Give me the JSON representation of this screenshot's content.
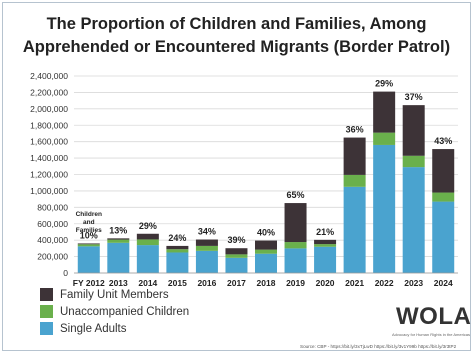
{
  "title_line1": "The Proportion of Children and Families, Among",
  "title_line2": "Apprehended or Encountered Migrants (Border Patrol)",
  "annotation": "Children and Families",
  "brand": "WOLA",
  "brand_tagline": "Advocacy for Human Rights in the Americas",
  "source": "Source: CBP - https://bit.ly/3xTjLwD https://bit.ly/3v1Y99b https://bit.ly/3r3tP2",
  "colors": {
    "family": "#3d3337",
    "unaccompanied": "#6ab04c",
    "single": "#4aa3cf"
  },
  "legend": [
    {
      "label": "Family Unit Members",
      "color": "#3d3337"
    },
    {
      "label": "Unaccompanied Children",
      "color": "#6ab04c"
    },
    {
      "label": "Single Adults",
      "color": "#4aa3cf"
    }
  ],
  "chart_data": {
    "type": "bar",
    "stacked": true,
    "categories": [
      "FY 2012",
      "2013",
      "2014",
      "2015",
      "2016",
      "2017",
      "2018",
      "2019",
      "2020",
      "2021",
      "2022",
      "2023",
      "2024"
    ],
    "series": [
      {
        "name": "Single Adults",
        "values": [
          325000,
          368000,
          340000,
          250000,
          270000,
          185000,
          235000,
          300000,
          320000,
          1050000,
          1560000,
          1290000,
          870000
        ]
      },
      {
        "name": "Unaccompanied Children",
        "values": [
          25000,
          39000,
          69000,
          40000,
          60000,
          42000,
          50000,
          77000,
          32000,
          145000,
          150000,
          138000,
          110000
        ]
      },
      {
        "name": "Family Unit Members",
        "values": [
          10000,
          15000,
          69000,
          40000,
          78000,
          75000,
          110000,
          475000,
          52000,
          455000,
          500000,
          617000,
          530000
        ]
      }
    ],
    "percent_labels": [
      "10%",
      "13%",
      "29%",
      "24%",
      "34%",
      "39%",
      "40%",
      "65%",
      "21%",
      "36%",
      "29%",
      "37%",
      "43%"
    ],
    "ylim": [
      0,
      2400000
    ],
    "yticks": [
      0,
      200000,
      400000,
      600000,
      800000,
      1000000,
      1200000,
      1400000,
      1600000,
      1800000,
      2000000,
      2200000,
      2400000
    ],
    "ytick_labels": [
      "0",
      "200,000",
      "400,000",
      "600,000",
      "800,000",
      "1,000,000",
      "1,200,000",
      "1,400,000",
      "1,600,000",
      "1,800,000",
      "2,000,000",
      "2,200,000",
      "2,400,000"
    ],
    "grid": true,
    "legend_position": "bottom-left"
  }
}
